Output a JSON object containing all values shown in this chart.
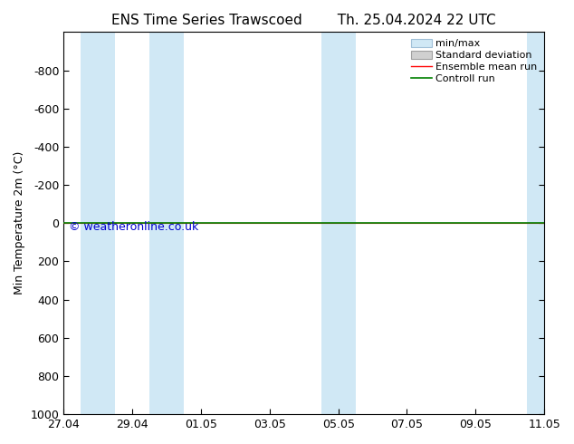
{
  "title_left": "ENS Time Series Trawscoed",
  "title_right": "Th. 25.04.2024 22 UTC",
  "ylabel": "Min Temperature 2m (°C)",
  "ylim_top": -1000,
  "ylim_bottom": 1000,
  "yticks": [
    -800,
    -600,
    -400,
    -200,
    0,
    200,
    400,
    600,
    800,
    1000
  ],
  "x_tick_labels": [
    "27.04",
    "29.04",
    "01.05",
    "03.05",
    "05.05",
    "07.05",
    "09.05",
    "11.05"
  ],
  "x_tick_positions": [
    0,
    2,
    4,
    6,
    8,
    10,
    12,
    14
  ],
  "shaded_bands": [
    {
      "xmin": 0.5,
      "xmax": 1.5
    },
    {
      "xmin": 2.5,
      "xmax": 3.5
    },
    {
      "xmin": 7.5,
      "xmax": 8.5
    },
    {
      "xmin": 13.5,
      "xmax": 14
    }
  ],
  "shaded_color": "#d0e8f5",
  "green_line_color": "#008000",
  "red_line_color": "#ff0000",
  "watermark": "© weatheronline.co.uk",
  "watermark_color": "#0000cd",
  "legend_labels": [
    "min/max",
    "Standard deviation",
    "Ensemble mean run",
    "Controll run"
  ],
  "legend_fill_colors": [
    "#d0e8f5",
    "#d0d0d0",
    null,
    null
  ],
  "legend_edge_colors": [
    "#a0c0d8",
    "#a0a0a0",
    null,
    null
  ],
  "legend_line_colors": [
    null,
    null,
    "#ff0000",
    "#008000"
  ],
  "background_color": "#ffffff",
  "tick_color": "#000000",
  "title_fontsize": 11,
  "axis_label_fontsize": 9,
  "tick_fontsize": 9,
  "legend_fontsize": 8,
  "watermark_fontsize": 9
}
